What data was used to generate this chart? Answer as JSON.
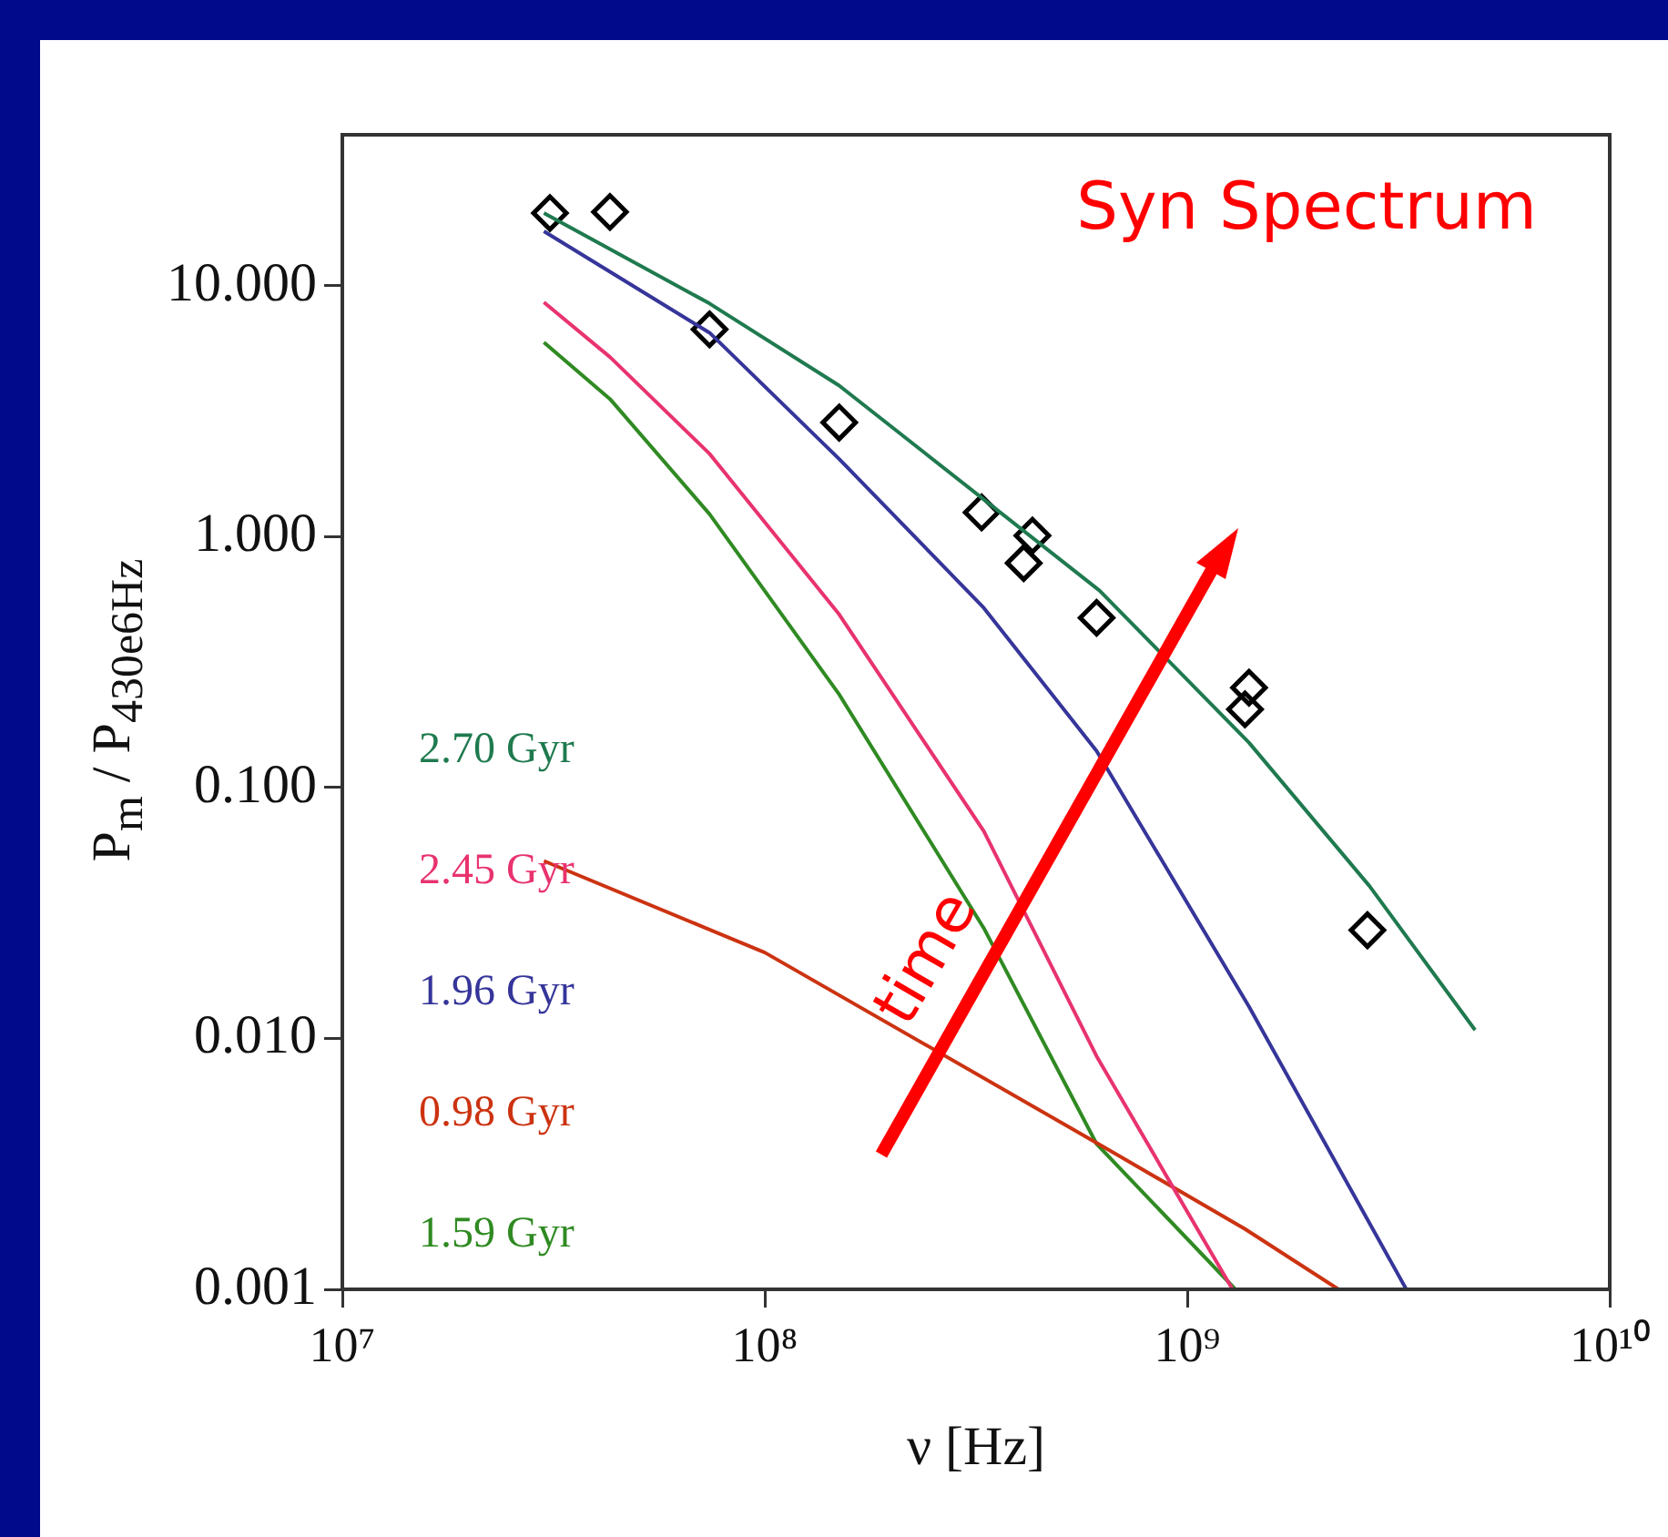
{
  "chart_data": {
    "type": "line",
    "title": "Syn Spectrum",
    "xlabel": "ν [Hz]",
    "ylabel": "P$_{m}$ / P$_{430e6Hz}$",
    "annotations": [
      "time"
    ],
    "log": "xy",
    "grid": false,
    "legend": "bottom left",
    "marker": "none",
    "line_style": "solid",
    "xlim": [
      10000000,
      10000000000
    ],
    "xticks": [
      {
        "value": 10000000,
        "label": "10⁷"
      },
      {
        "value": 100000000,
        "label": "10⁸"
      },
      {
        "value": 1000000000,
        "label": "10⁹"
      },
      {
        "value": 10000000000,
        "label": "10¹⁰"
      }
    ],
    "ylim": [
      0.001,
      40
    ],
    "yticks": [
      {
        "value": 0.001,
        "label": "0.001"
      },
      {
        "value": 0.01,
        "label": "0.010"
      },
      {
        "value": 0.1,
        "label": "0.100"
      },
      {
        "value": 1,
        "label": "1.000"
      },
      {
        "value": 10,
        "label": "10.000"
      }
    ],
    "series": [
      {
        "name": "2.70 Gyr",
        "color": "#1f7a4f",
        "x": [
          30000000,
          74000000,
          150000000,
          620000000,
          1400000000,
          2700000000,
          4800000000
        ],
        "values": [
          19.5,
          8.5,
          4.0,
          0.61,
          0.151,
          0.0405,
          0.0108
        ]
      },
      {
        "name": "2.45 Gyr",
        "color": "#e8336e",
        "x": [
          30000000,
          43000000,
          74000000,
          150000000,
          330000000,
          610000000,
          1280000000
        ],
        "values": [
          8.6,
          5.2,
          2.14,
          0.49,
          0.067,
          0.0085,
          0.001
        ]
      },
      {
        "name": "1.96 Gyr",
        "color": "#35359a",
        "x": [
          30000000,
          74000000,
          150000000,
          330000000,
          610000000,
          1400000000,
          3300000000
        ],
        "values": [
          16.5,
          6.5,
          2.04,
          0.52,
          0.14,
          0.0134,
          0.001
        ]
      },
      {
        "name": "0.98 Gyr",
        "color": "#cc3311",
        "x": [
          30000000,
          100000000,
          600000000,
          1370000000,
          2280000000
        ],
        "values": [
          0.051,
          0.022,
          0.0039,
          0.00174,
          0.001
        ]
      },
      {
        "name": "1.59 Gyr",
        "color": "#2f8a22",
        "x": [
          30000000,
          43000000,
          74000000,
          150000000,
          330000000,
          610000000,
          1300000000
        ],
        "values": [
          5.95,
          3.54,
          1.23,
          0.235,
          0.0275,
          0.0038,
          0.001
        ]
      },
      {
        "type": "scatter",
        "marker": "diamond",
        "color": "#000000",
        "x": [
          31000000,
          43000000,
          74000000,
          150000000,
          326000000,
          430000000,
          410000000,
          610000000,
          1400000000,
          1370000000,
          2670000000
        ],
        "values": [
          19.5,
          19.7,
          6.7,
          2.85,
          1.25,
          1.01,
          0.785,
          0.475,
          0.25,
          0.205,
          0.027
        ]
      }
    ]
  }
}
